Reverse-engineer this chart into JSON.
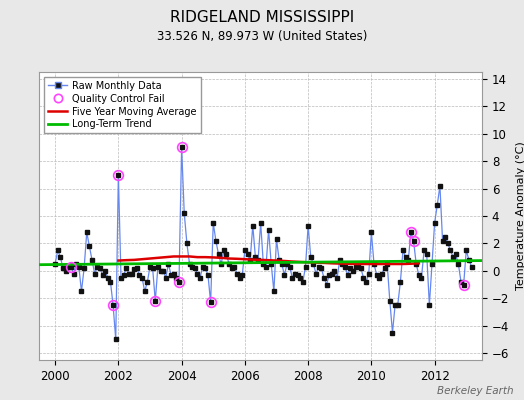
{
  "title": "RIDGELAND MISSISSIPPI",
  "subtitle": "33.526 N, 89.973 W (United States)",
  "ylabel": "Temperature Anomaly (°C)",
  "watermark": "Berkeley Earth",
  "ylim": [
    -6.5,
    14.5
  ],
  "yticks": [
    -6,
    -4,
    -2,
    0,
    2,
    4,
    6,
    8,
    10,
    12,
    14
  ],
  "xlim": [
    1999.5,
    2013.5
  ],
  "xticks": [
    2000,
    2002,
    2004,
    2006,
    2008,
    2010,
    2012
  ],
  "bg_color": "#e8e8e8",
  "plot_bg_color": "#ffffff",
  "raw_line_color": "#6688ee",
  "raw_marker_color": "#111111",
  "ma_color": "#dd0000",
  "trend_color": "#00bb00",
  "qc_color": "#ff44ff",
  "raw_data": [
    [
      2000.0,
      0.5
    ],
    [
      2000.083,
      1.5
    ],
    [
      2000.167,
      1.0
    ],
    [
      2000.25,
      0.2
    ],
    [
      2000.333,
      0.0
    ],
    [
      2000.417,
      0.3
    ],
    [
      2000.5,
      0.3
    ],
    [
      2000.583,
      -0.2
    ],
    [
      2000.667,
      0.5
    ],
    [
      2000.75,
      0.3
    ],
    [
      2000.833,
      -1.5
    ],
    [
      2000.917,
      0.2
    ],
    [
      2001.0,
      2.8
    ],
    [
      2001.083,
      1.8
    ],
    [
      2001.167,
      0.8
    ],
    [
      2001.25,
      -0.2
    ],
    [
      2001.333,
      0.3
    ],
    [
      2001.417,
      0.2
    ],
    [
      2001.5,
      -0.3
    ],
    [
      2001.583,
      0.0
    ],
    [
      2001.667,
      -0.5
    ],
    [
      2001.75,
      -0.8
    ],
    [
      2001.833,
      -2.5
    ],
    [
      2001.917,
      -5.0
    ],
    [
      2002.0,
      7.0
    ],
    [
      2002.083,
      -0.5
    ],
    [
      2002.167,
      -0.3
    ],
    [
      2002.25,
      0.2
    ],
    [
      2002.333,
      -0.2
    ],
    [
      2002.417,
      -0.2
    ],
    [
      2002.5,
      0.1
    ],
    [
      2002.583,
      0.2
    ],
    [
      2002.667,
      -0.3
    ],
    [
      2002.75,
      -0.5
    ],
    [
      2002.833,
      -1.5
    ],
    [
      2002.917,
      -0.8
    ],
    [
      2003.0,
      0.3
    ],
    [
      2003.083,
      0.2
    ],
    [
      2003.167,
      -2.2
    ],
    [
      2003.25,
      0.3
    ],
    [
      2003.333,
      0.0
    ],
    [
      2003.417,
      0.0
    ],
    [
      2003.5,
      -0.5
    ],
    [
      2003.583,
      0.5
    ],
    [
      2003.667,
      -0.3
    ],
    [
      2003.75,
      -0.2
    ],
    [
      2003.833,
      -0.5
    ],
    [
      2003.917,
      -0.8
    ],
    [
      2004.0,
      9.0
    ],
    [
      2004.083,
      4.2
    ],
    [
      2004.167,
      2.0
    ],
    [
      2004.25,
      0.5
    ],
    [
      2004.333,
      0.3
    ],
    [
      2004.417,
      0.2
    ],
    [
      2004.5,
      -0.2
    ],
    [
      2004.583,
      -0.5
    ],
    [
      2004.667,
      0.3
    ],
    [
      2004.75,
      0.2
    ],
    [
      2004.833,
      -0.3
    ],
    [
      2004.917,
      -2.3
    ],
    [
      2005.0,
      3.5
    ],
    [
      2005.083,
      2.2
    ],
    [
      2005.167,
      1.2
    ],
    [
      2005.25,
      0.5
    ],
    [
      2005.333,
      1.5
    ],
    [
      2005.417,
      1.2
    ],
    [
      2005.5,
      0.5
    ],
    [
      2005.583,
      0.2
    ],
    [
      2005.667,
      0.3
    ],
    [
      2005.75,
      -0.2
    ],
    [
      2005.833,
      -0.5
    ],
    [
      2005.917,
      -0.3
    ],
    [
      2006.0,
      1.5
    ],
    [
      2006.083,
      1.2
    ],
    [
      2006.167,
      0.8
    ],
    [
      2006.25,
      3.3
    ],
    [
      2006.333,
      1.0
    ],
    [
      2006.417,
      0.8
    ],
    [
      2006.5,
      3.5
    ],
    [
      2006.583,
      0.5
    ],
    [
      2006.667,
      0.3
    ],
    [
      2006.75,
      3.0
    ],
    [
      2006.833,
      0.5
    ],
    [
      2006.917,
      -1.5
    ],
    [
      2007.0,
      2.3
    ],
    [
      2007.083,
      0.8
    ],
    [
      2007.167,
      0.5
    ],
    [
      2007.25,
      -0.3
    ],
    [
      2007.333,
      0.5
    ],
    [
      2007.417,
      0.3
    ],
    [
      2007.5,
      -0.5
    ],
    [
      2007.583,
      -0.2
    ],
    [
      2007.667,
      -0.3
    ],
    [
      2007.75,
      -0.5
    ],
    [
      2007.833,
      -0.8
    ],
    [
      2007.917,
      0.3
    ],
    [
      2008.0,
      3.3
    ],
    [
      2008.083,
      1.0
    ],
    [
      2008.167,
      0.5
    ],
    [
      2008.25,
      -0.2
    ],
    [
      2008.333,
      0.3
    ],
    [
      2008.417,
      0.2
    ],
    [
      2008.5,
      -0.5
    ],
    [
      2008.583,
      -1.0
    ],
    [
      2008.667,
      -0.3
    ],
    [
      2008.75,
      -0.2
    ],
    [
      2008.833,
      0.0
    ],
    [
      2008.917,
      -0.5
    ],
    [
      2009.0,
      0.8
    ],
    [
      2009.083,
      0.5
    ],
    [
      2009.167,
      0.3
    ],
    [
      2009.25,
      -0.3
    ],
    [
      2009.333,
      0.2
    ],
    [
      2009.417,
      0.0
    ],
    [
      2009.5,
      0.3
    ],
    [
      2009.583,
      0.5
    ],
    [
      2009.667,
      0.2
    ],
    [
      2009.75,
      -0.5
    ],
    [
      2009.833,
      -0.8
    ],
    [
      2009.917,
      -0.2
    ],
    [
      2010.0,
      2.8
    ],
    [
      2010.083,
      0.5
    ],
    [
      2010.167,
      -0.3
    ],
    [
      2010.25,
      -0.5
    ],
    [
      2010.333,
      -0.2
    ],
    [
      2010.417,
      0.2
    ],
    [
      2010.5,
      0.5
    ],
    [
      2010.583,
      -2.2
    ],
    [
      2010.667,
      -4.5
    ],
    [
      2010.75,
      -2.5
    ],
    [
      2010.833,
      -2.5
    ],
    [
      2010.917,
      -0.8
    ],
    [
      2011.0,
      1.5
    ],
    [
      2011.083,
      1.0
    ],
    [
      2011.167,
      0.8
    ],
    [
      2011.25,
      2.8
    ],
    [
      2011.333,
      2.2
    ],
    [
      2011.417,
      0.5
    ],
    [
      2011.5,
      -0.3
    ],
    [
      2011.583,
      -0.5
    ],
    [
      2011.667,
      1.5
    ],
    [
      2011.75,
      1.2
    ],
    [
      2011.833,
      -2.5
    ],
    [
      2011.917,
      0.5
    ],
    [
      2012.0,
      3.5
    ],
    [
      2012.083,
      4.8
    ],
    [
      2012.167,
      6.2
    ],
    [
      2012.25,
      2.2
    ],
    [
      2012.333,
      2.5
    ],
    [
      2012.417,
      2.0
    ],
    [
      2012.5,
      1.5
    ],
    [
      2012.583,
      1.0
    ],
    [
      2012.667,
      1.2
    ],
    [
      2012.75,
      0.5
    ],
    [
      2012.833,
      -0.8
    ],
    [
      2012.917,
      -1.0
    ],
    [
      2013.0,
      1.5
    ],
    [
      2013.083,
      0.8
    ],
    [
      2013.167,
      0.3
    ]
  ],
  "qc_fail_points": [
    [
      2000.5,
      0.3
    ],
    [
      2001.833,
      -2.5
    ],
    [
      2002.0,
      7.0
    ],
    [
      2003.167,
      -2.2
    ],
    [
      2003.917,
      -0.8
    ],
    [
      2004.0,
      9.0
    ],
    [
      2004.917,
      -2.3
    ],
    [
      2011.25,
      2.8
    ],
    [
      2011.333,
      2.2
    ],
    [
      2012.917,
      -1.0
    ]
  ],
  "moving_avg": [
    [
      2002.0,
      0.75
    ],
    [
      2002.25,
      0.78
    ],
    [
      2002.5,
      0.8
    ],
    [
      2002.75,
      0.85
    ],
    [
      2003.0,
      0.9
    ],
    [
      2003.25,
      0.95
    ],
    [
      2003.5,
      1.0
    ],
    [
      2003.75,
      1.05
    ],
    [
      2004.0,
      1.05
    ],
    [
      2004.25,
      1.05
    ],
    [
      2004.5,
      1.0
    ],
    [
      2004.75,
      1.0
    ],
    [
      2005.0,
      0.98
    ],
    [
      2005.25,
      0.95
    ],
    [
      2005.5,
      0.9
    ],
    [
      2005.75,
      0.88
    ],
    [
      2006.0,
      0.85
    ],
    [
      2006.25,
      0.82
    ],
    [
      2006.5,
      0.8
    ],
    [
      2006.75,
      0.78
    ],
    [
      2007.0,
      0.75
    ],
    [
      2007.25,
      0.72
    ],
    [
      2007.5,
      0.68
    ],
    [
      2007.75,
      0.65
    ],
    [
      2008.0,
      0.62
    ],
    [
      2008.25,
      0.6
    ],
    [
      2008.5,
      0.58
    ],
    [
      2008.75,
      0.55
    ],
    [
      2009.0,
      0.53
    ],
    [
      2009.25,
      0.52
    ],
    [
      2009.5,
      0.5
    ],
    [
      2009.75,
      0.5
    ],
    [
      2010.0,
      0.5
    ],
    [
      2010.25,
      0.5
    ],
    [
      2010.5,
      0.5
    ],
    [
      2010.75,
      0.5
    ],
    [
      2011.0,
      0.5
    ],
    [
      2011.25,
      0.52
    ],
    [
      2011.5,
      0.55
    ]
  ],
  "trend_x": [
    1999.5,
    2013.5
  ],
  "trend_y": [
    0.45,
    0.75
  ]
}
